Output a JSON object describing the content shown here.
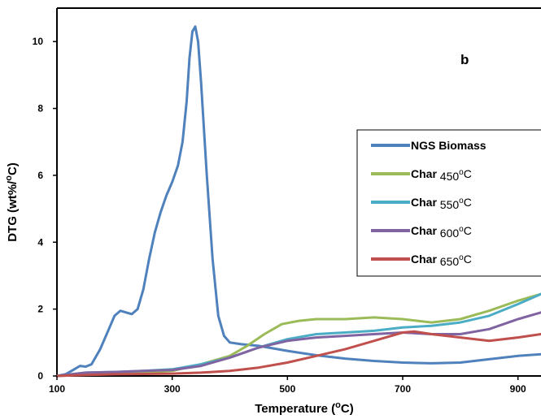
{
  "chart_data": {
    "type": "line",
    "panel_label": "b",
    "xlabel": "Temperature (°C)",
    "xlabel_parts": {
      "before": "Temperature (",
      "sup": "o",
      "after": "C)"
    },
    "ylabel": "DTG (wt%/°C)",
    "ylabel_parts": {
      "before": "DTG (wt%/",
      "sup": "o",
      "after": "C)"
    },
    "xlim": [
      100,
      940
    ],
    "ylim": [
      0,
      11
    ],
    "xticks": [
      100,
      300,
      500,
      700,
      900
    ],
    "yticks": [
      0,
      2,
      4,
      6,
      8,
      10
    ],
    "grid": false,
    "legend_position": "right",
    "series": [
      {
        "name": "NGS Biomass",
        "legend_parts": {
          "before": "NGS Biomass",
          "sup": "",
          "after": ""
        },
        "color": "#4f81bd",
        "points": [
          [
            100,
            0
          ],
          [
            115,
            0.05
          ],
          [
            130,
            0.2
          ],
          [
            140,
            0.3
          ],
          [
            150,
            0.28
          ],
          [
            160,
            0.35
          ],
          [
            175,
            0.8
          ],
          [
            190,
            1.4
          ],
          [
            200,
            1.8
          ],
          [
            210,
            1.95
          ],
          [
            220,
            1.9
          ],
          [
            230,
            1.85
          ],
          [
            240,
            2.0
          ],
          [
            250,
            2.6
          ],
          [
            260,
            3.5
          ],
          [
            270,
            4.3
          ],
          [
            280,
            4.9
          ],
          [
            290,
            5.4
          ],
          [
            300,
            5.8
          ],
          [
            310,
            6.3
          ],
          [
            318,
            7.0
          ],
          [
            325,
            8.2
          ],
          [
            330,
            9.5
          ],
          [
            335,
            10.3
          ],
          [
            340,
            10.45
          ],
          [
            345,
            10.0
          ],
          [
            350,
            8.8
          ],
          [
            360,
            6.0
          ],
          [
            370,
            3.5
          ],
          [
            380,
            1.8
          ],
          [
            390,
            1.2
          ],
          [
            400,
            1.0
          ],
          [
            420,
            0.95
          ],
          [
            450,
            0.9
          ],
          [
            500,
            0.75
          ],
          [
            550,
            0.62
          ],
          [
            600,
            0.52
          ],
          [
            650,
            0.45
          ],
          [
            700,
            0.4
          ],
          [
            750,
            0.38
          ],
          [
            800,
            0.4
          ],
          [
            850,
            0.5
          ],
          [
            900,
            0.6
          ],
          [
            940,
            0.65
          ]
        ]
      },
      {
        "name": "Char 450°C",
        "legend_parts": {
          "before": "Char ",
          "sup": "o",
          "after": "C",
          "temp": "450"
        },
        "color": "#9bbb59",
        "points": [
          [
            100,
            0
          ],
          [
            150,
            0.05
          ],
          [
            200,
            0.08
          ],
          [
            250,
            0.1
          ],
          [
            300,
            0.15
          ],
          [
            350,
            0.35
          ],
          [
            400,
            0.6
          ],
          [
            430,
            0.9
          ],
          [
            460,
            1.25
          ],
          [
            490,
            1.55
          ],
          [
            520,
            1.65
          ],
          [
            550,
            1.7
          ],
          [
            600,
            1.7
          ],
          [
            650,
            1.75
          ],
          [
            700,
            1.7
          ],
          [
            750,
            1.6
          ],
          [
            800,
            1.7
          ],
          [
            850,
            1.95
          ],
          [
            900,
            2.25
          ],
          [
            940,
            2.45
          ]
        ]
      },
      {
        "name": "Char 550°C",
        "legend_parts": {
          "before": "Char ",
          "sup": "o",
          "after": "C",
          "temp": "550"
        },
        "color": "#4bacc6",
        "points": [
          [
            100,
            0
          ],
          [
            150,
            0.1
          ],
          [
            200,
            0.12
          ],
          [
            250,
            0.15
          ],
          [
            300,
            0.2
          ],
          [
            350,
            0.35
          ],
          [
            400,
            0.55
          ],
          [
            450,
            0.85
          ],
          [
            500,
            1.1
          ],
          [
            550,
            1.25
          ],
          [
            600,
            1.3
          ],
          [
            650,
            1.35
          ],
          [
            700,
            1.45
          ],
          [
            750,
            1.5
          ],
          [
            800,
            1.6
          ],
          [
            850,
            1.8
          ],
          [
            900,
            2.15
          ],
          [
            940,
            2.45
          ]
        ]
      },
      {
        "name": "Char 600°C",
        "legend_parts": {
          "before": "Char ",
          "sup": "o",
          "after": "C",
          "temp": "600"
        },
        "color": "#8064a2",
        "points": [
          [
            100,
            0
          ],
          [
            150,
            0.1
          ],
          [
            200,
            0.12
          ],
          [
            250,
            0.15
          ],
          [
            300,
            0.18
          ],
          [
            350,
            0.3
          ],
          [
            400,
            0.55
          ],
          [
            450,
            0.85
          ],
          [
            500,
            1.05
          ],
          [
            550,
            1.15
          ],
          [
            600,
            1.2
          ],
          [
            650,
            1.25
          ],
          [
            700,
            1.3
          ],
          [
            750,
            1.25
          ],
          [
            800,
            1.25
          ],
          [
            850,
            1.4
          ],
          [
            900,
            1.7
          ],
          [
            940,
            1.9
          ]
        ]
      },
      {
        "name": "Char 650°C",
        "legend_parts": {
          "before": "Char ",
          "sup": "o",
          "after": "C",
          "temp": "650"
        },
        "color": "#c0504d",
        "points": [
          [
            100,
            0
          ],
          [
            150,
            0.03
          ],
          [
            200,
            0.05
          ],
          [
            250,
            0.06
          ],
          [
            300,
            0.07
          ],
          [
            350,
            0.1
          ],
          [
            400,
            0.15
          ],
          [
            450,
            0.25
          ],
          [
            500,
            0.4
          ],
          [
            550,
            0.6
          ],
          [
            600,
            0.8
          ],
          [
            650,
            1.05
          ],
          [
            700,
            1.3
          ],
          [
            720,
            1.33
          ],
          [
            750,
            1.25
          ],
          [
            800,
            1.15
          ],
          [
            850,
            1.05
          ],
          [
            900,
            1.15
          ],
          [
            940,
            1.25
          ]
        ]
      }
    ]
  }
}
